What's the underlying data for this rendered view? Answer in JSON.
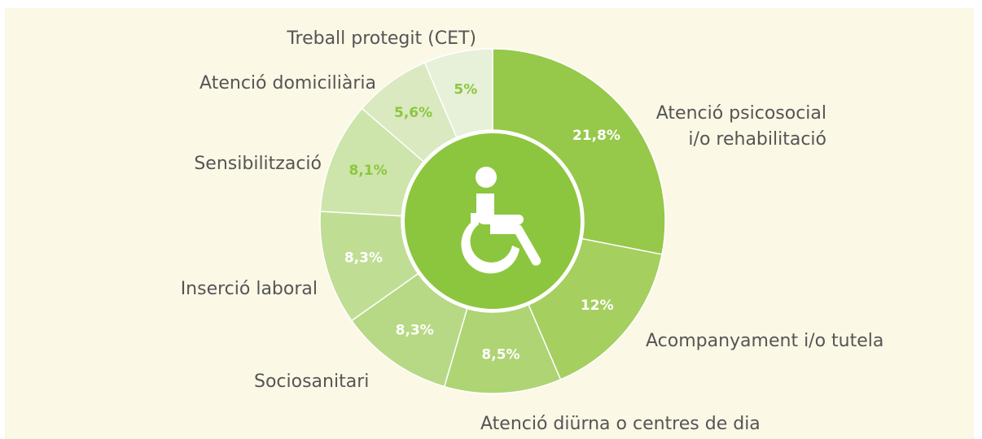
{
  "chart_data": {
    "type": "donut",
    "categories": [
      "Atenció psicosocial i/o rehabilitació",
      "Acompanyament i/o tutela",
      "Atenció diürna o centres de dia",
      "Sociosanitari",
      "Inserció laboral",
      "Sensibilització",
      "Atenció domiciliària",
      "Treball protegit (CET)"
    ],
    "values": [
      21.8,
      12,
      8.5,
      8.3,
      8.3,
      8.1,
      5.6,
      5
    ],
    "value_labels": [
      "21,8%",
      "12%",
      "8,5%",
      "8,3%",
      "8,3%",
      "8,1%",
      "5,6%",
      "5%"
    ],
    "colors": [
      "#96c84a",
      "#a5cf5f",
      "#aed474",
      "#b7d985",
      "#c0dd94",
      "#cde5aa",
      "#dae9c0",
      "#e7f0d8"
    ],
    "label_colors": [
      "#ffffff",
      "#ffffff",
      "#ffffff",
      "#ffffff",
      "#ffffff",
      "#8dc63f",
      "#8dc63f",
      "#8dc63f"
    ]
  }
}
